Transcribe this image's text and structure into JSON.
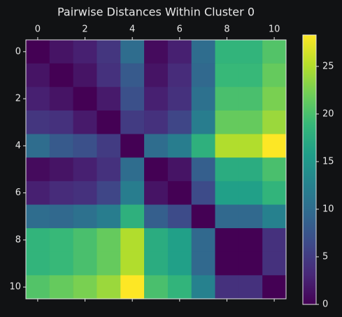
{
  "chart_data": {
    "type": "heatmap",
    "title": "Pairwise Distances Within Cluster 0",
    "colormap": "viridis",
    "clim": [
      0,
      28.3
    ],
    "xlim": [
      -0.5,
      10.5
    ],
    "ylim": [
      10.5,
      -0.5
    ],
    "xticks": [
      0,
      2,
      4,
      6,
      8,
      10
    ],
    "yticks": [
      0,
      2,
      4,
      6,
      8,
      10
    ],
    "colorbar_ticks": [
      0,
      5,
      10,
      15,
      20,
      25
    ],
    "z": [
      [
        0,
        1.5,
        2.5,
        4.5,
        10,
        0.8,
        2.5,
        10,
        18.5,
        18.5,
        20.5
      ],
      [
        1.5,
        0,
        1.5,
        4,
        8,
        1.5,
        3.5,
        9.5,
        19,
        19,
        21.5
      ],
      [
        2.5,
        1.5,
        0,
        2,
        7,
        2.5,
        4,
        10.5,
        20,
        20,
        22.5
      ],
      [
        4.5,
        4,
        2,
        0,
        5,
        4,
        6,
        12,
        21.5,
        21.5,
        24
      ],
      [
        10,
        8,
        7,
        5,
        0,
        10,
        12,
        18,
        25,
        25,
        28.3
      ],
      [
        0.8,
        1.5,
        2.5,
        4,
        10,
        0,
        1.5,
        8.5,
        17.5,
        17.5,
        20
      ],
      [
        2.5,
        3.5,
        4,
        6,
        12,
        1.5,
        0,
        6.5,
        16,
        16,
        18.5
      ],
      [
        10,
        9.5,
        10.5,
        12,
        18,
        8.5,
        6.5,
        0,
        9.5,
        9.5,
        12.5
      ],
      [
        18.5,
        19,
        20,
        21.5,
        25,
        17.5,
        16,
        9.5,
        0,
        0,
        4
      ],
      [
        18.5,
        19,
        20,
        21.5,
        25,
        17.5,
        16,
        9.5,
        0,
        0,
        4
      ],
      [
        20.5,
        21.5,
        22.5,
        24,
        28.3,
        20,
        18.5,
        12.5,
        4,
        4,
        0
      ]
    ]
  }
}
